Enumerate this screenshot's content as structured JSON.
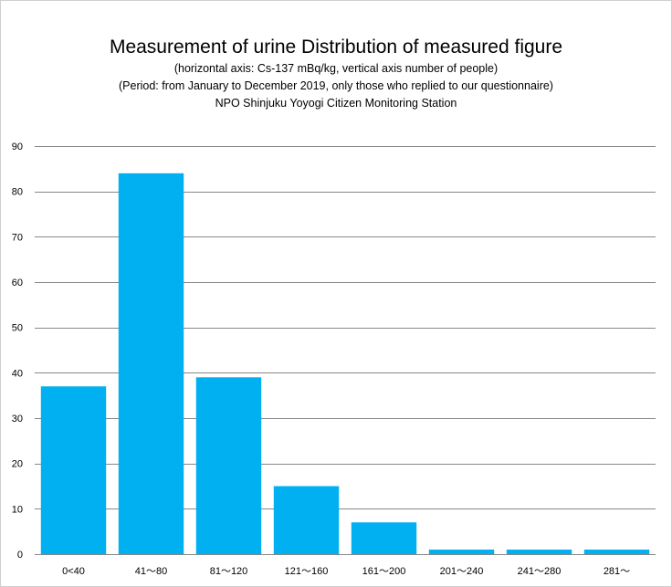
{
  "chart_data": {
    "type": "bar",
    "title": "Measurement of urine  Distribution of measured figure",
    "subtitles": [
      "(horizontal axis: Cs-137 mBq/kg, vertical axis number of people)",
      "(Period: from January to December 2019,  only  those who replied to our questionnaire)",
      "NPO Shinjuku Yoyogi Citizen Monitoring Station"
    ],
    "xlabel": "",
    "ylabel": "",
    "categories": [
      "0<40",
      "41～80",
      "81～120",
      "121～160",
      "161～200",
      "201～240",
      "241～280",
      "281～"
    ],
    "values": [
      37,
      84,
      39,
      15,
      7,
      1,
      1,
      1
    ],
    "ylim": [
      0,
      90
    ],
    "yticks": [
      0,
      10,
      20,
      30,
      40,
      50,
      60,
      70,
      80,
      90
    ],
    "grid": true,
    "legend": "none",
    "bar_color": "#00b0f0",
    "grid_color": "#888888"
  }
}
